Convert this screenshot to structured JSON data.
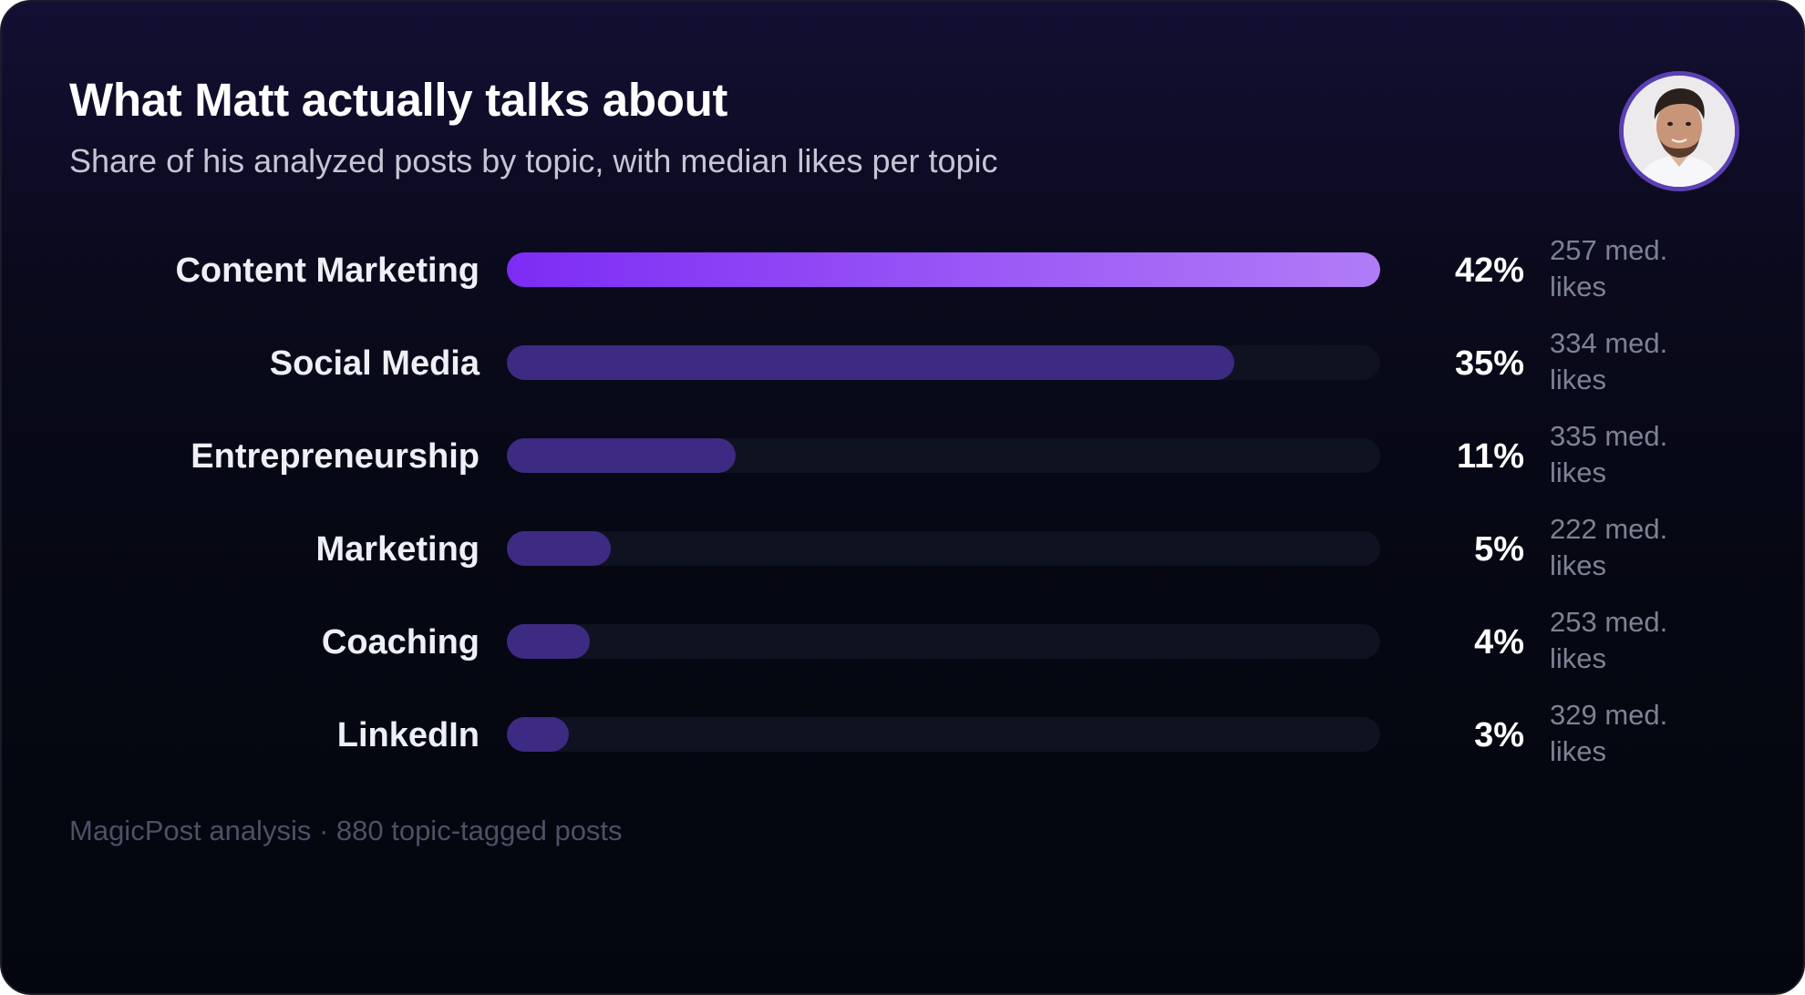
{
  "header": {
    "title": "What Matt actually talks about",
    "subtitle": "Share of his analyzed posts by topic, with median likes per topic"
  },
  "footer": {
    "source": "MagicPost analysis · 880 topic-tagged posts"
  },
  "colors": {
    "accent": "#8b3df5",
    "bar": "#3d2a82",
    "track": "#0f1220",
    "background": "#05070f"
  },
  "chart_data": {
    "type": "bar",
    "orientation": "horizontal",
    "categories": [
      "Content Marketing",
      "Social Media",
      "Entrepreneurship",
      "Marketing",
      "Coaching",
      "LinkedIn"
    ],
    "values": [
      42,
      35,
      11,
      5,
      4,
      3
    ],
    "value_labels": [
      "42%",
      "35%",
      "11%",
      "5%",
      "4%",
      "3%"
    ],
    "median_likes_labels": [
      "257 med. likes",
      "334 med. likes",
      "335 med. likes",
      "222 med. likes",
      "253 med. likes",
      "329 med. likes"
    ],
    "median_likes": [
      257,
      334,
      335,
      222,
      253,
      329
    ],
    "title": "What Matt actually talks about",
    "xlim": [
      0,
      42
    ],
    "grid": false
  }
}
